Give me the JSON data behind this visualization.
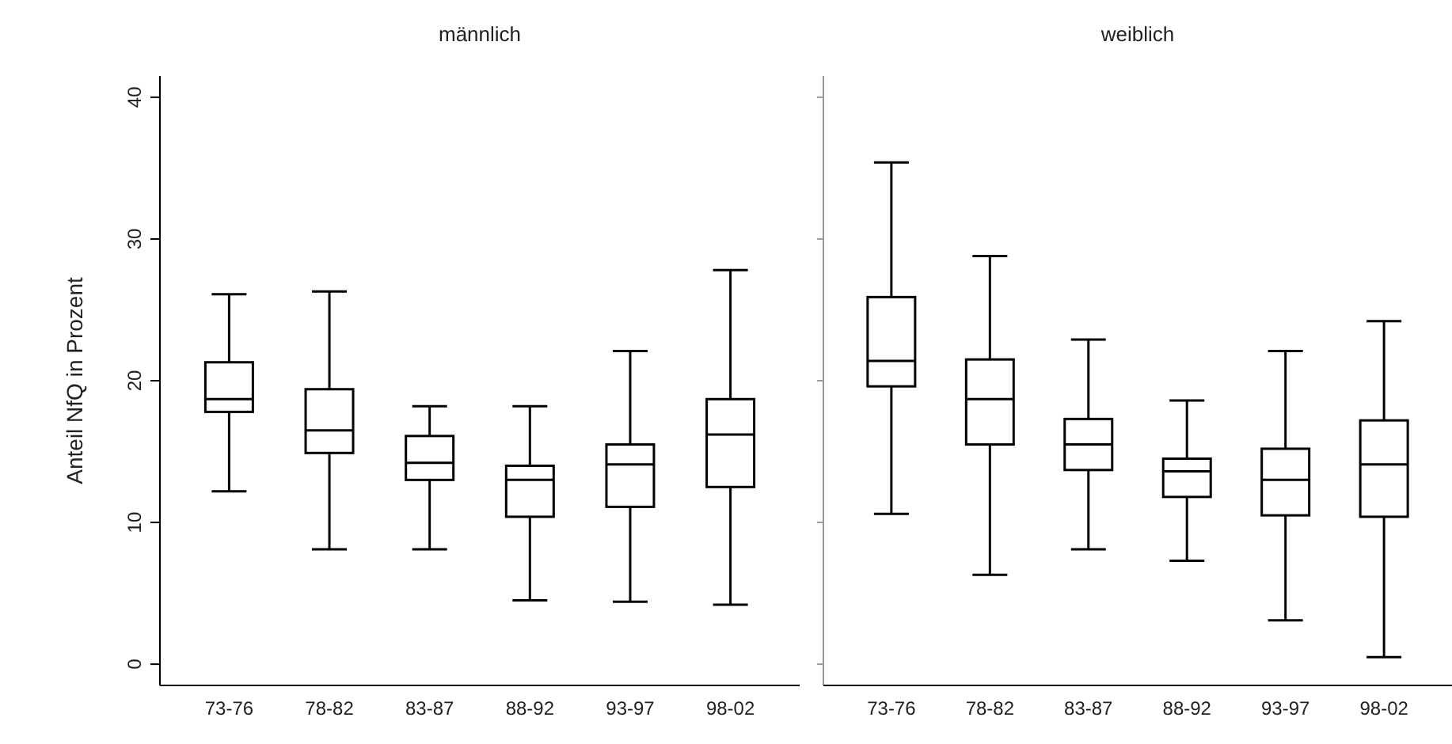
{
  "chart_data": [
    {
      "type": "box",
      "title": "männlich",
      "ylabel": "Anteil NfQ in Prozent",
      "categories": [
        "73-76",
        "78-82",
        "83-87",
        "88-92",
        "93-97",
        "98-02"
      ],
      "ylim": [
        -1.5,
        41.5
      ],
      "yticks": [
        0,
        10,
        20,
        30,
        40
      ],
      "grid": false,
      "color": "#000000",
      "boxes": [
        {
          "low": 12.2,
          "q1": 17.8,
          "median": 18.7,
          "q3": 21.3,
          "high": 26.1
        },
        {
          "low": 8.1,
          "q1": 14.9,
          "median": 16.5,
          "q3": 19.4,
          "high": 26.3
        },
        {
          "low": 8.1,
          "q1": 13.0,
          "median": 14.2,
          "q3": 16.1,
          "high": 18.2
        },
        {
          "low": 4.5,
          "q1": 10.4,
          "median": 13.0,
          "q3": 14.0,
          "high": 18.2
        },
        {
          "low": 4.4,
          "q1": 11.1,
          "median": 14.1,
          "q3": 15.5,
          "high": 22.1
        },
        {
          "low": 4.2,
          "q1": 12.5,
          "median": 16.2,
          "q3": 18.7,
          "high": 27.8
        }
      ]
    },
    {
      "type": "box",
      "title": "weiblich",
      "categories": [
        "73-76",
        "78-82",
        "83-87",
        "88-92",
        "93-97",
        "98-02"
      ],
      "ylim": [
        -1.5,
        41.5
      ],
      "yticks": [
        0,
        10,
        20,
        30,
        40
      ],
      "tick_labels": "x",
      "grid": false,
      "color": "#000000",
      "boxes": [
        {
          "low": 10.6,
          "q1": 19.6,
          "median": 21.4,
          "q3": 25.9,
          "high": 35.4
        },
        {
          "low": 6.3,
          "q1": 15.5,
          "median": 18.7,
          "q3": 21.5,
          "high": 28.8
        },
        {
          "low": 8.1,
          "q1": 13.7,
          "median": 15.5,
          "q3": 17.3,
          "high": 22.9
        },
        {
          "low": 7.3,
          "q1": 11.8,
          "median": 13.6,
          "q3": 14.5,
          "high": 18.6
        },
        {
          "low": 3.1,
          "q1": 10.5,
          "median": 13.0,
          "q3": 15.2,
          "high": 22.1
        },
        {
          "low": 0.5,
          "q1": 10.4,
          "median": 14.1,
          "q3": 17.2,
          "high": 24.2
        }
      ]
    }
  ]
}
